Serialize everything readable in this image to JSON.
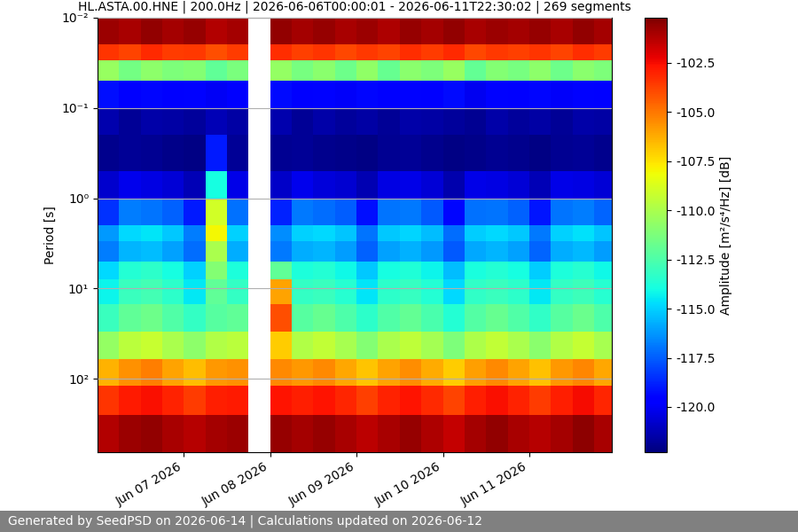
{
  "chart_data": {
    "type": "heatmap",
    "title": "HL.ASTA.00.HNE | 200.0Hz | 2026-06-06T00:00:01 - 2026-06-11T22:30:02 | 269 segments",
    "ylabel": "Period [s]",
    "footer": "Generated by SeedPSD on 2026-06-14 | Calculations updated on 2026-06-12",
    "log": "y",
    "grid": true,
    "x_edges": [
      "2026-06-06T00:00",
      "2026-06-06T06:00",
      "2026-06-06T12:00",
      "2026-06-06T18:00",
      "2026-06-07T00:00",
      "2026-06-07T06:00",
      "2026-06-07T12:00",
      "2026-06-07T18:00",
      "2026-06-08T00:00",
      "2026-06-08T06:00",
      "2026-06-08T12:00",
      "2026-06-08T18:00",
      "2026-06-09T00:00",
      "2026-06-09T06:00",
      "2026-06-09T12:00",
      "2026-06-09T18:00",
      "2026-06-10T00:00",
      "2026-06-10T06:00",
      "2026-06-10T12:00",
      "2026-06-10T18:00",
      "2026-06-11T00:00",
      "2026-06-11T06:00",
      "2026-06-11T12:00",
      "2026-06-11T18:00",
      "2026-06-12T00:00"
    ],
    "xlim": [
      "2026-06-06T00:00",
      "2026-06-11T23:00"
    ],
    "xticks": [
      {
        "value": "2026-06-07",
        "label": "Jun 07 2026"
      },
      {
        "value": "2026-06-08",
        "label": "Jun 08 2026"
      },
      {
        "value": "2026-06-09",
        "label": "Jun 09 2026"
      },
      {
        "value": "2026-06-10",
        "label": "Jun 10 2026"
      },
      {
        "value": "2026-06-11",
        "label": "Jun 11 2026"
      }
    ],
    "y_edges": [
      0.01,
      0.02,
      0.03,
      0.05,
      0.1,
      0.2,
      0.5,
      1,
      2,
      3,
      5,
      8,
      15,
      30,
      60,
      120,
      250,
      650
    ],
    "ylim": [
      650,
      0.01
    ],
    "yticks": [
      {
        "value": 0.01,
        "label": "10⁻²"
      },
      {
        "value": 0.1,
        "label": "10⁻¹"
      },
      {
        "value": 1,
        "label": "10⁰"
      },
      {
        "value": 10,
        "label": "10¹"
      },
      {
        "value": 100,
        "label": "10²"
      }
    ],
    "cells": [
      [
        -100.8,
        -101.0,
        -100.6,
        -100.9,
        -100.7,
        -101.2,
        -100.9,
        null,
        -100.6,
        -100.9,
        -100.7,
        -101.0,
        -100.8,
        -101.1,
        -100.7,
        -100.9,
        -100.6,
        -101.0,
        -100.8,
        -100.9,
        -100.7,
        -101.0,
        -100.6,
        -100.9
      ],
      [
        -103.4,
        -103.8,
        -103.2,
        -103.6,
        -103.5,
        -104.0,
        -103.6,
        null,
        -103.3,
        -103.7,
        -103.4,
        -103.9,
        -103.5,
        -103.8,
        -103.3,
        -103.6,
        -103.2,
        -103.9,
        -103.5,
        -103.7,
        -103.4,
        -103.8,
        -103.3,
        -103.6
      ],
      [
        -110.5,
        -111.5,
        -110.8,
        -111.2,
        -111.0,
        -112.0,
        -111.3,
        null,
        -110.6,
        -111.4,
        -110.9,
        -111.6,
        -110.7,
        -111.8,
        -110.9,
        -111.2,
        -110.5,
        -111.9,
        -111.0,
        -111.4,
        -110.8,
        -111.6,
        -110.9,
        -111.2
      ],
      [
        -119.2,
        -119.8,
        -119.4,
        -119.6,
        -119.5,
        -120.0,
        -119.6,
        null,
        -119.3,
        -119.7,
        -119.5,
        -119.9,
        -119.4,
        -119.8,
        -119.5,
        -119.6,
        -119.3,
        -120.1,
        -119.5,
        -119.7,
        -119.4,
        -119.9,
        -119.5,
        -119.6
      ],
      [
        -121.4,
        -121.8,
        -121.5,
        -121.6,
        -121.7,
        -121.2,
        -121.6,
        null,
        -121.4,
        -121.8,
        -121.5,
        -121.7,
        -121.6,
        -121.8,
        -121.5,
        -121.6,
        -121.7,
        -121.9,
        -121.5,
        -121.7,
        -121.6,
        -121.8,
        -121.5,
        -121.6
      ],
      [
        -122.0,
        -121.8,
        -121.9,
        -122.1,
        -122.2,
        -119.0,
        -121.8,
        null,
        -121.9,
        -121.8,
        -122.0,
        -122.1,
        -122.2,
        -121.9,
        -121.8,
        -122.0,
        -122.2,
        -122.1,
        -121.9,
        -122.0,
        -122.2,
        -121.9,
        -121.8,
        -122.0
      ],
      [
        -120.8,
        -120.2,
        -120.4,
        -120.6,
        -121.2,
        -114.0,
        -120.3,
        null,
        -120.9,
        -120.2,
        -120.5,
        -120.7,
        -121.3,
        -120.4,
        -120.3,
        -120.6,
        -121.4,
        -120.3,
        -120.4,
        -120.6,
        -121.2,
        -120.3,
        -120.4,
        -120.6
      ],
      [
        -118.5,
        -116.8,
        -117.0,
        -117.4,
        -119.0,
        -109.0,
        -117.1,
        null,
        -118.8,
        -116.9,
        -117.2,
        -117.5,
        -119.2,
        -117.0,
        -116.9,
        -117.6,
        -119.4,
        -117.1,
        -117.0,
        -117.4,
        -119.1,
        -117.0,
        -116.8,
        -117.3
      ],
      [
        -116.2,
        -114.8,
        -114.6,
        -115.2,
        -116.8,
        -108.0,
        -115.0,
        null,
        -116.5,
        -115.0,
        -114.8,
        -115.3,
        -117.0,
        -115.2,
        -114.9,
        -115.4,
        -117.2,
        -115.1,
        -114.8,
        -115.2,
        -116.9,
        -115.0,
        -114.7,
        -115.3
      ],
      [
        -116.8,
        -115.6,
        -115.4,
        -116.0,
        -117.2,
        -110.0,
        -115.8,
        null,
        -116.9,
        -115.8,
        -115.6,
        -116.1,
        -117.4,
        -116.0,
        -115.7,
        -116.2,
        -117.6,
        -115.9,
        -115.6,
        -116.0,
        -117.3,
        -115.8,
        -115.5,
        -116.1
      ],
      [
        -114.8,
        -113.6,
        -113.4,
        -114.0,
        -115.0,
        -111.0,
        -113.8,
        null,
        -112.0,
        -113.8,
        -113.6,
        -114.1,
        -115.2,
        -114.0,
        -113.7,
        -114.2,
        -115.4,
        -113.9,
        -113.6,
        -114.0,
        -115.1,
        -113.8,
        -113.5,
        -114.1
      ],
      [
        -114.2,
        -113.0,
        -112.8,
        -113.4,
        -114.5,
        -112.0,
        -113.2,
        null,
        -106.0,
        -113.2,
        -113.0,
        -113.5,
        -114.6,
        -113.4,
        -113.1,
        -113.6,
        -114.8,
        -113.3,
        -113.0,
        -113.4,
        -114.5,
        -113.2,
        -112.9,
        -113.5
      ],
      [
        -113.0,
        -112.0,
        -111.6,
        -112.4,
        -113.2,
        -112.2,
        -112.0,
        null,
        -104.0,
        -112.2,
        -111.8,
        -112.5,
        -113.4,
        -112.4,
        -111.9,
        -112.6,
        -113.6,
        -112.3,
        -111.8,
        -112.4,
        -113.3,
        -112.2,
        -111.7,
        -112.5
      ],
      [
        -110.6,
        -109.6,
        -109.2,
        -110.0,
        -110.8,
        -109.8,
        -109.6,
        null,
        -107.0,
        -109.8,
        -109.4,
        -110.1,
        -111.0,
        -110.0,
        -109.5,
        -110.2,
        -111.2,
        -109.9,
        -109.4,
        -110.0,
        -110.9,
        -109.8,
        -109.3,
        -110.1
      ],
      [
        -106.4,
        -105.6,
        -105.2,
        -106.0,
        -106.6,
        -105.8,
        -105.6,
        null,
        -105.4,
        -105.8,
        -105.4,
        -106.1,
        -106.8,
        -106.0,
        -105.5,
        -106.2,
        -107.0,
        -105.9,
        -105.4,
        -106.0,
        -106.7,
        -105.8,
        -105.3,
        -106.1
      ],
      [
        -103.4,
        -102.8,
        -102.6,
        -103.0,
        -103.6,
        -102.9,
        -102.8,
        null,
        -102.7,
        -102.9,
        -102.7,
        -103.1,
        -103.7,
        -103.0,
        -102.7,
        -103.2,
        -103.8,
        -102.9,
        -102.6,
        -103.0,
        -103.6,
        -102.9,
        -102.5,
        -103.1
      ],
      [
        -101.2,
        -100.8,
        -100.6,
        -101.0,
        -101.3,
        -100.9,
        -100.8,
        null,
        -100.7,
        -100.9,
        -100.7,
        -101.0,
        -101.4,
        -101.0,
        -100.7,
        -101.1,
        -101.5,
        -100.9,
        -100.6,
        -101.0,
        -101.3,
        -100.9,
        -100.5,
        -101.0
      ]
    ],
    "colorbar_label": "Amplitude [m²/s⁴/Hz] [dB]",
    "clim": [
      -122.3,
      -100.2
    ],
    "cticks": [
      -102.5,
      -105.0,
      -107.5,
      -110.0,
      -112.5,
      -115.0,
      -117.5,
      -120.0
    ]
  }
}
